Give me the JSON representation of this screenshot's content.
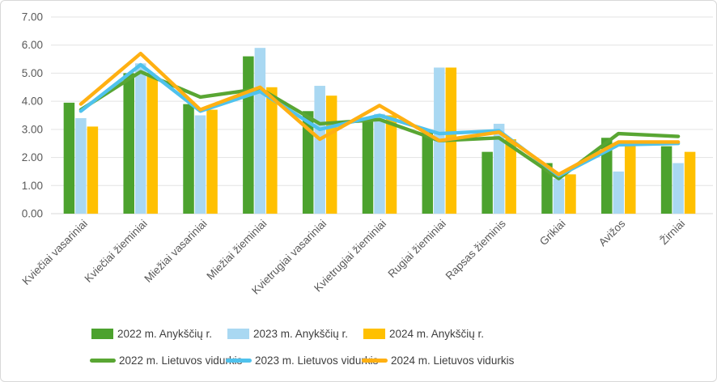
{
  "figure": {
    "description": "Grain crop yield comparison chart, Anykščiai district bars vs Lithuanian average lines, 2022-2024"
  },
  "chart_data": {
    "type": "bar",
    "subtype": "combo bar + line",
    "categories": [
      "Kviečiai vasariniai",
      "Kviečiai žieminiai",
      "Miežiai vasariniai",
      "Miežiai žieminiai",
      "Kvietrugiai vasariniai",
      "Kvietrugiai žieminiai",
      "Rugiai žieminiai",
      "Rapsas žieminis",
      "Grikiai",
      "Avižos",
      "Žirniai"
    ],
    "series": [
      {
        "name": "2022 m. Anykščių r.",
        "type": "bar",
        "color": "#4CA22E",
        "values": [
          3.95,
          5.0,
          3.9,
          5.6,
          3.65,
          3.3,
          2.9,
          2.2,
          1.8,
          2.7,
          2.4
        ]
      },
      {
        "name": "2023 m. Anykščių r.",
        "type": "bar",
        "color": "#A9D8F2",
        "values": [
          3.4,
          5.35,
          3.5,
          5.9,
          4.55,
          3.55,
          5.2,
          3.2,
          1.25,
          1.5,
          1.8
        ]
      },
      {
        "name": "2024 m. Anykščių r.",
        "type": "bar",
        "color": "#FFC000",
        "values": [
          3.1,
          4.9,
          3.7,
          4.5,
          4.2,
          3.5,
          5.2,
          2.65,
          1.4,
          2.5,
          2.2
        ]
      },
      {
        "name": "2022 m. Lietuvos vidurkis",
        "type": "line",
        "color": "#59A633",
        "values": [
          3.7,
          5.05,
          4.15,
          4.45,
          3.2,
          3.35,
          2.6,
          2.7,
          1.25,
          2.85,
          2.75
        ]
      },
      {
        "name": "2023 m. Lietuvos vidurkis",
        "type": "line",
        "color": "#4FC2ED",
        "values": [
          3.65,
          5.3,
          3.65,
          4.35,
          3.0,
          3.5,
          2.85,
          2.95,
          1.35,
          2.45,
          2.5
        ]
      },
      {
        "name": "2024 m. Lietuvos vidurkis",
        "type": "line",
        "color": "#FFB012",
        "values": [
          3.9,
          5.7,
          3.7,
          4.5,
          2.65,
          3.85,
          2.6,
          2.9,
          1.4,
          2.55,
          2.55
        ]
      }
    ],
    "ylim": [
      0,
      7
    ],
    "ytick_step": 1,
    "ytick_labels": [
      "0.00",
      "1.00",
      "2.00",
      "3.00",
      "4.00",
      "5.00",
      "6.00",
      "7.00"
    ],
    "grid": true,
    "legend_position": "bottom",
    "x_label_rotation_deg": 45
  },
  "style": {
    "grid_color": "#E3E3E3",
    "axis_line_color": "#D9D9D9",
    "tick_label_color": "#595959",
    "legend_text_color": "#3F3F3F"
  }
}
